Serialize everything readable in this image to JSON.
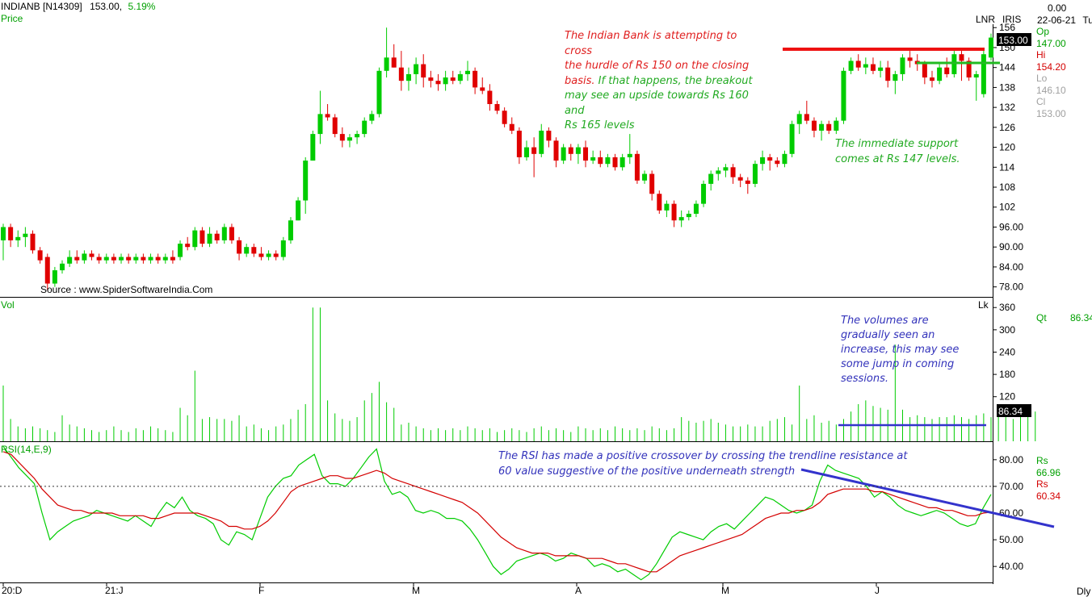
{
  "header": {
    "symbol": "INDIANB [N14309]",
    "last": "153.00,",
    "change_pct": "5.19%",
    "price_label": "Price",
    "studies": "LNR",
    "iris": "IRIS",
    "date": "22-06-21",
    "day": "Tu",
    "top_value": "0.00",
    "vol_label": "Vol",
    "lk_label": "Lk",
    "rsi_label": "RSI(14,E,9)",
    "period": "Dly"
  },
  "ohlc_box": {
    "rows": [
      {
        "label": "Op",
        "value": "147.00",
        "color": "#00a000"
      },
      {
        "label": "Hi",
        "value": "154.20",
        "color": "#d40000"
      },
      {
        "label": "Lo",
        "value": "146.10",
        "color": "#a0a0a0"
      },
      {
        "label": "Cl",
        "value": "153.00",
        "color": "#a0a0a0"
      }
    ]
  },
  "qt": {
    "label": "Qt",
    "value": "86.34"
  },
  "rsi_readout": [
    {
      "label": "Rs",
      "value": "66.96",
      "color": "#00a000"
    },
    {
      "label": "Rs",
      "value": "60.34",
      "color": "#d40000"
    }
  ],
  "source": "Source : www.SpiderSoftwareIndia.Com",
  "annotations": {
    "resistance_lines": [
      "The Indian Bank is attempting to cross",
      "the hurdle of Rs 150 on the closing",
      "basis."
    ],
    "breakout_lines": [
      "If that happens, the breakout",
      "may see an upside towards Rs 160 and",
      "Rs 165 levels"
    ],
    "support_lines": [
      "The immediate support",
      "comes at Rs 147 levels."
    ],
    "volume_lines": [
      "The volumes are",
      "gradually seen an",
      "increase, this may see",
      "some jump in coming",
      "sessions."
    ],
    "rsi_lines": [
      "The RSI has made a positive crossover by crossing the trendline resistance at",
      "60 value suggestive of the positive underneath strength"
    ]
  },
  "colors": {
    "up": "#00cc00",
    "down": "#e00000",
    "rsi": "#00cc00",
    "rsi_signal": "#d40000",
    "resistance": "#ee1111",
    "support": "#22bb22",
    "trend": "#3333cc",
    "text_red": "#e02020",
    "text_green": "#22aa22",
    "text_blue": "#3333bb"
  },
  "chart_data": [
    {
      "type": "candlestick",
      "title": "INDIANB [N14309]",
      "ylim": [
        75,
        158
      ],
      "yticks": [
        "156",
        "150",
        "144",
        "138",
        "132",
        "126",
        "120",
        "114",
        "108",
        "102",
        "96.00",
        "90.00",
        "84.00",
        "78.00"
      ],
      "x_labels": [
        "20:D",
        "21:J",
        "F",
        "M",
        "A",
        "M",
        "J"
      ],
      "candles": [
        [
          92,
          97,
          86,
          96
        ],
        [
          96,
          97,
          90,
          92
        ],
        [
          92,
          95,
          90,
          93
        ],
        [
          93,
          96,
          90,
          94
        ],
        [
          94,
          95,
          88,
          89
        ],
        [
          89,
          90,
          85,
          86
        ],
        [
          87,
          88,
          77,
          79
        ],
        [
          79,
          84,
          78,
          83
        ],
        [
          83,
          86,
          82,
          85
        ],
        [
          85,
          89,
          84,
          87
        ],
        [
          87,
          89,
          85,
          86
        ],
        [
          86,
          89,
          85,
          88
        ],
        [
          88,
          89,
          86,
          87
        ],
        [
          87,
          88,
          85,
          86
        ],
        [
          86,
          88,
          85,
          87
        ],
        [
          87,
          88,
          85,
          86
        ],
        [
          86,
          88,
          85,
          87
        ],
        [
          87,
          88,
          85,
          86
        ],
        [
          86,
          88,
          85,
          87
        ],
        [
          87,
          88,
          85,
          86
        ],
        [
          86,
          88,
          85,
          87
        ],
        [
          87,
          88,
          85,
          86
        ],
        [
          86,
          88,
          85,
          87
        ],
        [
          87,
          89,
          85,
          86
        ],
        [
          87,
          92,
          86,
          91
        ],
        [
          91,
          93,
          89,
          90
        ],
        [
          90,
          96,
          89,
          95
        ],
        [
          95,
          96,
          90,
          91
        ],
        [
          91,
          96,
          90,
          94
        ],
        [
          94,
          95,
          91,
          92
        ],
        [
          92,
          97,
          91,
          96
        ],
        [
          96,
          97,
          91,
          92
        ],
        [
          92,
          93,
          86,
          88
        ],
        [
          88,
          91,
          87,
          90
        ],
        [
          90,
          91,
          87,
          88
        ],
        [
          88,
          90,
          86,
          87
        ],
        [
          87,
          89,
          86,
          88
        ],
        [
          88,
          89,
          86,
          87
        ],
        [
          87,
          93,
          86,
          92
        ],
        [
          92,
          99,
          91,
          98
        ],
        [
          98,
          105,
          98,
          104
        ],
        [
          104,
          117,
          100,
          116
        ],
        [
          116,
          125,
          116,
          124
        ],
        [
          124,
          137,
          121,
          130
        ],
        [
          130,
          133,
          128,
          129
        ],
        [
          129,
          130,
          123,
          124
        ],
        [
          124,
          126,
          120,
          122
        ],
        [
          122,
          124,
          120,
          123
        ],
        [
          123,
          125,
          121,
          124
        ],
        [
          124,
          129,
          123,
          128
        ],
        [
          128,
          131,
          127,
          130
        ],
        [
          130,
          144,
          129,
          143
        ],
        [
          143,
          156,
          141,
          147
        ],
        [
          147,
          151,
          144,
          144
        ],
        [
          144,
          149,
          137,
          140
        ],
        [
          140,
          144,
          137,
          142
        ],
        [
          142,
          147,
          139,
          145
        ],
        [
          145,
          148,
          138,
          141
        ],
        [
          141,
          143,
          138,
          140
        ],
        [
          140,
          142,
          137,
          139
        ],
        [
          139,
          143,
          137,
          141
        ],
        [
          141,
          143,
          139,
          140
        ],
        [
          140,
          143,
          139,
          142
        ],
        [
          142,
          146,
          140,
          143
        ],
        [
          143,
          144,
          136,
          138
        ],
        [
          138,
          141,
          136,
          137
        ],
        [
          137,
          139,
          131,
          133
        ],
        [
          133,
          134,
          130,
          131
        ],
        [
          131,
          132,
          126,
          127
        ],
        [
          127,
          129,
          124,
          125
        ],
        [
          125,
          126,
          115,
          117
        ],
        [
          117,
          122,
          116,
          120
        ],
        [
          120,
          123,
          111,
          118
        ],
        [
          118,
          127,
          117,
          125
        ],
        [
          125,
          126,
          120,
          122
        ],
        [
          122,
          123,
          114,
          116
        ],
        [
          116,
          121,
          115,
          120
        ],
        [
          120,
          121,
          116,
          118
        ],
        [
          118,
          121,
          115,
          120
        ],
        [
          120,
          122,
          114,
          116
        ],
        [
          116,
          119,
          115,
          117
        ],
        [
          117,
          119,
          114,
          115
        ],
        [
          115,
          118,
          114,
          117
        ],
        [
          117,
          118,
          113,
          114
        ],
        [
          114,
          118,
          113,
          117
        ],
        [
          117,
          124,
          115,
          118
        ],
        [
          118,
          119,
          109,
          110
        ],
        [
          110,
          113,
          109,
          112
        ],
        [
          112,
          113,
          104,
          106
        ],
        [
          106,
          107,
          100,
          101
        ],
        [
          101,
          104,
          99,
          103
        ],
        [
          103,
          104,
          96,
          98
        ],
        [
          98,
          101,
          96,
          99
        ],
        [
          99,
          101,
          98,
          100
        ],
        [
          100,
          104,
          99,
          103
        ],
        [
          103,
          110,
          102,
          109
        ],
        [
          109,
          113,
          107,
          112
        ],
        [
          112,
          114,
          110,
          113
        ],
        [
          113,
          115,
          111,
          114
        ],
        [
          114,
          115,
          109,
          111
        ],
        [
          111,
          112,
          108,
          110
        ],
        [
          110,
          111,
          106,
          109
        ],
        [
          109,
          116,
          108,
          115
        ],
        [
          115,
          119,
          113,
          117
        ],
        [
          117,
          118,
          113,
          116
        ],
        [
          116,
          117,
          114,
          115
        ],
        [
          115,
          119,
          114,
          118
        ],
        [
          118,
          128,
          117,
          127
        ],
        [
          127,
          131,
          124,
          130
        ],
        [
          130,
          134,
          127,
          128
        ],
        [
          128,
          129,
          123,
          125
        ],
        [
          125,
          128,
          122,
          127
        ],
        [
          127,
          128,
          124,
          125
        ],
        [
          125,
          129,
          124,
          128
        ],
        [
          128,
          144,
          127,
          143
        ],
        [
          143,
          147,
          142,
          146
        ],
        [
          146,
          148,
          143,
          144
        ],
        [
          144,
          147,
          142,
          145
        ],
        [
          145,
          147,
          142,
          143
        ],
        [
          143,
          146,
          141,
          144
        ],
        [
          144,
          146,
          138,
          140
        ],
        [
          140,
          143,
          136,
          142
        ],
        [
          142,
          148,
          140,
          147
        ],
        [
          147,
          149,
          144,
          146
        ],
        [
          146,
          148,
          143,
          145
        ],
        [
          145,
          146,
          139,
          141
        ],
        [
          141,
          143,
          138,
          140
        ],
        [
          140,
          145,
          139,
          144
        ],
        [
          144,
          147,
          141,
          142
        ],
        [
          142,
          149,
          141,
          148
        ],
        [
          148,
          149,
          140,
          146
        ],
        [
          146,
          147,
          140,
          141
        ],
        [
          141,
          143,
          134,
          142
        ],
        [
          136,
          150,
          135,
          148
        ],
        [
          147,
          154.2,
          146.1,
          153
        ]
      ]
    },
    {
      "type": "bar",
      "title": "Vol",
      "ylim": [
        0,
        380
      ],
      "yticks": [
        "360",
        "300",
        "240",
        "180",
        "120"
      ],
      "last_value": "86.34",
      "values": [
        150,
        60,
        40,
        35,
        40,
        35,
        30,
        25,
        70,
        45,
        40,
        35,
        30,
        25,
        30,
        40,
        30,
        25,
        35,
        30,
        40,
        35,
        30,
        25,
        90,
        70,
        190,
        60,
        65,
        60,
        60,
        55,
        70,
        40,
        45,
        35,
        30,
        40,
        45,
        60,
        85,
        100,
        360,
        360,
        110,
        75,
        60,
        55,
        65,
        110,
        130,
        160,
        105,
        90,
        45,
        50,
        40,
        35,
        30,
        35,
        30,
        35,
        30,
        40,
        35,
        30,
        35,
        25,
        30,
        35,
        30,
        25,
        35,
        40,
        30,
        35,
        30,
        25,
        40,
        35,
        30,
        35,
        30,
        40,
        35,
        30,
        35,
        30,
        40,
        35,
        30,
        35,
        65,
        55,
        50,
        55,
        60,
        50,
        45,
        40,
        40,
        45,
        40,
        40,
        55,
        60,
        65,
        45,
        150,
        60,
        70,
        50,
        55,
        45,
        60,
        80,
        100,
        110,
        95,
        90,
        85,
        260,
        85,
        65,
        70,
        65,
        60,
        65,
        65,
        70,
        65,
        60,
        70,
        75,
        65,
        70,
        65,
        60,
        75,
        70,
        80
      ]
    },
    {
      "type": "line",
      "title": "RSI(14,E,9)",
      "ylim": [
        34,
        86
      ],
      "yticks": [
        "80.00",
        "70.00",
        "60.00",
        "50.00",
        "40.00"
      ],
      "dotted_level": 70,
      "series": [
        {
          "name": "Rs",
          "values": [
            85,
            81,
            77,
            74,
            71,
            60,
            50,
            53,
            55,
            57,
            58,
            59,
            61,
            60,
            59,
            58,
            57,
            59,
            57,
            55,
            60,
            64,
            62,
            66,
            61,
            59,
            58,
            56,
            50,
            48,
            53,
            52,
            50,
            58,
            66,
            70,
            73,
            74,
            78,
            80,
            82,
            74,
            71,
            71,
            70,
            73,
            77,
            81,
            84,
            72,
            67,
            68,
            66,
            61,
            60,
            61,
            60,
            58,
            58,
            57,
            54,
            50,
            45,
            40,
            37,
            39,
            42,
            43,
            44,
            45,
            44,
            42,
            43,
            45,
            44,
            43,
            40,
            41,
            40,
            38,
            39,
            37,
            35,
            37,
            41,
            46,
            51,
            53,
            52,
            51,
            50,
            53,
            55,
            56,
            54,
            57,
            60,
            63,
            66,
            65,
            63,
            61,
            60,
            61,
            63,
            72,
            78,
            76,
            75,
            74,
            73,
            70,
            66,
            68,
            66,
            63,
            61,
            60,
            59,
            60,
            61,
            60,
            58,
            56,
            55,
            56,
            62,
            67
          ]
        },
        {
          "name": "Rs",
          "values": [
            83,
            82,
            79,
            76,
            73,
            69,
            66,
            63,
            62,
            61,
            61,
            60,
            60,
            60,
            60,
            59,
            59,
            59,
            59,
            58,
            58,
            59,
            60,
            60,
            60,
            60,
            59,
            58,
            57,
            55,
            55,
            54,
            54,
            55,
            57,
            60,
            64,
            68,
            70,
            71,
            72,
            73,
            74,
            74,
            73,
            73,
            74,
            75,
            76,
            75,
            73,
            72,
            71,
            70,
            69,
            68,
            67,
            66,
            65,
            64,
            62,
            60,
            57,
            54,
            51,
            49,
            47,
            46,
            45,
            45,
            45,
            44,
            44,
            44,
            44,
            43,
            43,
            43,
            42,
            41,
            41,
            40,
            39,
            38,
            38,
            40,
            42,
            44,
            45,
            46,
            47,
            48,
            49,
            50,
            51,
            52,
            54,
            56,
            58,
            59,
            60,
            60,
            61,
            61,
            62,
            64,
            67,
            68,
            69,
            69,
            69,
            69,
            68,
            68,
            67,
            66,
            65,
            64,
            63,
            62,
            62,
            61,
            61,
            60,
            59,
            59,
            60,
            60.34
          ]
        }
      ]
    }
  ]
}
